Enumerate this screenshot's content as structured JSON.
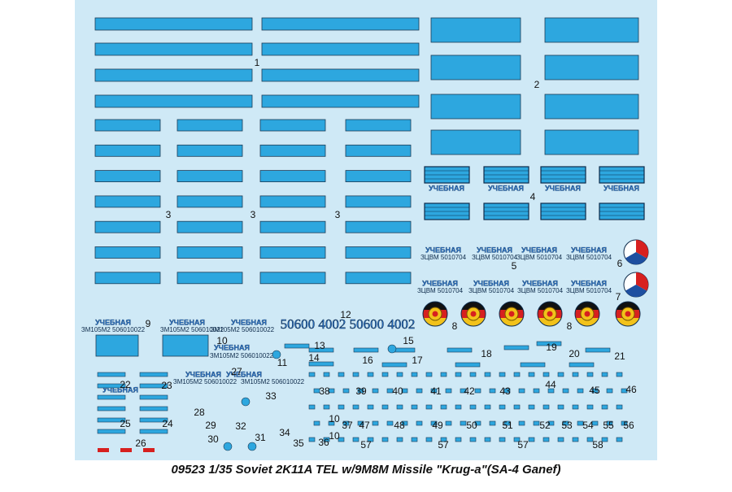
{
  "title": "09523 1/35 Soviet 2K11A  TEL w/9M8M Missile \"Krug-a\"(SA-4 Ganef)",
  "decal_texts": {
    "training": "УЧЕБНАЯ",
    "serial_a": "ЗЦВМ 5010704",
    "serial_b": "ЗМ105М2 506010022",
    "number": "50600 4002"
  },
  "labels": [
    "1",
    "2",
    "3",
    "3",
    "3",
    "4",
    "5",
    "6",
    "7",
    "8",
    "8",
    "9",
    "10",
    "11",
    "12",
    "13",
    "14",
    "15",
    "16",
    "17",
    "18",
    "19",
    "20",
    "21",
    "22",
    "23",
    "24",
    "25",
    "26",
    "27",
    "28",
    "29",
    "30",
    "31",
    "32",
    "33",
    "34",
    "35",
    "36",
    "37",
    "38",
    "39",
    "40",
    "41",
    "42",
    "43",
    "44",
    "45",
    "46",
    "47",
    "48",
    "49",
    "50",
    "51",
    "52",
    "53",
    "54",
    "55",
    "56",
    "57",
    "57",
    "57",
    "58",
    "10",
    "10"
  ]
}
